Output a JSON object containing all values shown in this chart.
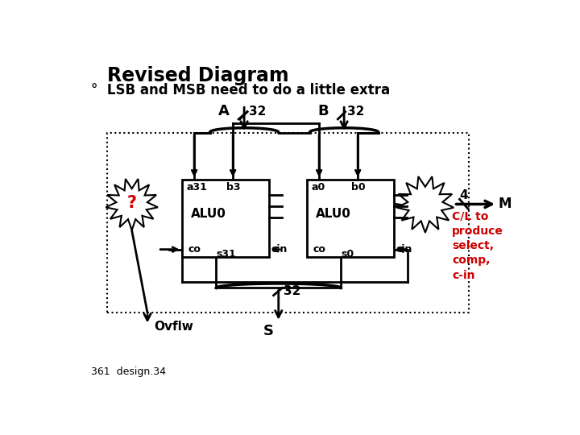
{
  "title": "Revised Diagram",
  "subtitle": "°  LSB and MSB need to do a little extra",
  "footer": "361  design.34",
  "bg_color": "#ffffff",
  "text_color": "#000000",
  "red_color": "#cc0000"
}
